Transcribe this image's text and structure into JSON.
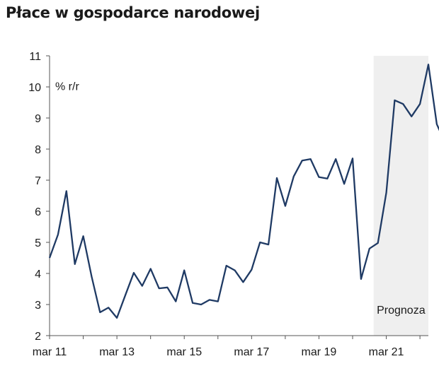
{
  "chart_data": {
    "type": "line",
    "title": "Płace w gospodarce narodowej",
    "unit_label": "% r/r",
    "forecast_label": "Prognoza",
    "x_tick_labels": [
      "mar 11",
      "mar 13",
      "mar 15",
      "mar 17",
      "mar 19",
      "mar 21"
    ],
    "x_tick_positions": [
      0,
      8,
      16,
      24,
      32,
      40
    ],
    "xlim": [
      0,
      45
    ],
    "ylim": [
      2,
      11
    ],
    "y_ticks": [
      2,
      3,
      4,
      5,
      6,
      7,
      8,
      9,
      10,
      11
    ],
    "forecast_start_index": 38.5,
    "grid": false,
    "series": [
      {
        "color": "#1f3a64",
        "values": [
          4.5,
          5.25,
          6.65,
          4.3,
          5.2,
          3.9,
          2.75,
          2.9,
          2.57,
          3.3,
          4.02,
          3.6,
          4.15,
          3.52,
          3.55,
          3.1,
          4.1,
          3.05,
          3.0,
          3.15,
          3.1,
          4.25,
          4.1,
          3.72,
          4.12,
          5.0,
          4.93,
          7.07,
          6.17,
          7.12,
          7.63,
          7.68,
          7.1,
          7.05,
          7.68,
          6.88,
          7.7,
          3.82,
          4.8,
          4.98,
          6.6,
          9.57,
          9.45,
          9.05,
          9.45,
          10.72,
          8.8,
          8.2
        ]
      }
    ]
  }
}
